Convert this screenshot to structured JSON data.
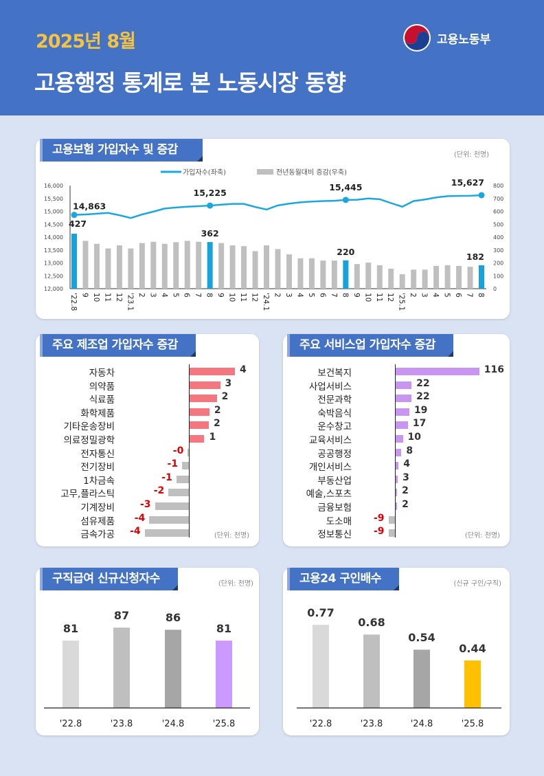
{
  "header": {
    "period": "2025년 8월",
    "title": "고용행정 통계로 본 노동시장 동향",
    "ministry": "고용노동부",
    "logo_icon": "taegeuk-emblem-icon"
  },
  "colors": {
    "header_bg": "#4472c4",
    "period_text": "#f5c342",
    "line": "#1aa7e0",
    "bar_highlight": "#17a2dc",
    "bar_gray": "#bfbfbf",
    "manufacturing_positive": "#f4777f",
    "services_positive": "#c896f0",
    "negative_label": "#e00000"
  },
  "panels": {
    "insurance": {
      "title": "고용보험 가입자수 및 증감",
      "unit": "(단위: 천명)"
    },
    "manufacturing": {
      "title": "주요 제조업 가입자수 증감",
      "unit": "(단위: 천명)"
    },
    "services": {
      "title": "주요 서비스업 가입자수 증감",
      "unit": "(단위: 천명)"
    },
    "benefits": {
      "title": "구직급여 신규신청자수",
      "unit": "(단위: 천명)"
    },
    "jobs": {
      "title": "고용24 구인배수",
      "unit": "(신규 구인/구직)"
    }
  },
  "chart_data": [
    {
      "type": "line+bar",
      "legend": [
        "가입자수(좌축)",
        "전년동월대비 증감(우축)"
      ],
      "legend_placement": "top",
      "categories": [
        "'22.8",
        "9",
        "10",
        "11",
        "12",
        "'23.1",
        "2",
        "3",
        "4",
        "5",
        "6",
        "7",
        "8",
        "9",
        "10",
        "11",
        "12",
        "'24.1",
        "2",
        "3",
        "4",
        "5",
        "6",
        "7",
        "8",
        "9",
        "10",
        "11",
        "12",
        "'25.1",
        "2",
        "3",
        "4",
        "5",
        "6",
        "7",
        "8"
      ],
      "series": [
        {
          "name": "가입자수(좌축)",
          "type": "line",
          "axis": "left",
          "values": [
            14863,
            14880,
            14910,
            14940,
            14850,
            14740,
            14880,
            14990,
            15110,
            15150,
            15180,
            15200,
            15225,
            15260,
            15290,
            15290,
            15170,
            15070,
            15230,
            15300,
            15350,
            15380,
            15400,
            15410,
            15445,
            15450,
            15500,
            15470,
            15320,
            15180,
            15400,
            15460,
            15540,
            15590,
            15600,
            15605,
            15627
          ]
        },
        {
          "name": "전년동월대비 증감(우축)",
          "type": "bar",
          "axis": "right",
          "values": [
            427,
            371,
            348,
            312,
            336,
            312,
            354,
            364,
            348,
            361,
            371,
            364,
            362,
            354,
            336,
            330,
            291,
            336,
            307,
            266,
            236,
            236,
            218,
            218,
            220,
            191,
            202,
            182,
            155,
            112,
            148,
            148,
            177,
            182,
            177,
            170,
            182
          ]
        }
      ],
      "highlight_indices": [
        0,
        12,
        24,
        36
      ],
      "line_labels": [
        "14,863",
        "15,225",
        "15,445",
        "15,627"
      ],
      "bar_labels": [
        "427",
        "362",
        "220",
        "182"
      ],
      "left_ylim": [
        12000,
        16000
      ],
      "left_ticks": [
        "12,000",
        "12,500",
        "13,000",
        "13,500",
        "14,000",
        "14,500",
        "15,000",
        "15,500",
        "16,000"
      ],
      "right_ylim": [
        0,
        800
      ],
      "right_ticks": [
        "0",
        "100",
        "200",
        "300",
        "400",
        "500",
        "600",
        "700",
        "800"
      ],
      "grid": false
    },
    {
      "type": "bar",
      "orientation": "horizontal",
      "categories": [
        "자동차",
        "의약품",
        "식료품",
        "화학제품",
        "기타운송장비",
        "의료정밀광학",
        "전자통신",
        "전기장비",
        "1차금속",
        "고무,플라스틱",
        "기계장비",
        "섬유제품",
        "금속가공"
      ],
      "values": [
        4.0,
        2.7,
        2.4,
        1.75,
        1.7,
        1.3,
        -0.1,
        -0.6,
        -1.1,
        -1.8,
        -3.0,
        -3.5,
        -3.9
      ],
      "labels": [
        "4",
        "3",
        "2",
        "2",
        "2",
        "1",
        "-0",
        "-1",
        "-1",
        "-2",
        "-3",
        "-4",
        "-4"
      ]
    },
    {
      "type": "bar",
      "orientation": "horizontal",
      "categories": [
        "보건복지",
        "사업서비스",
        "전문과학",
        "숙박음식",
        "운수창고",
        "교육서비스",
        "공공행정",
        "개인서비스",
        "부동산업",
        "예술,스포츠",
        "금융보험",
        "도소매",
        "정보통신"
      ],
      "values": [
        116,
        22,
        22,
        19,
        17,
        10,
        8,
        4,
        3,
        2,
        2,
        -9,
        -9
      ],
      "labels": [
        "116",
        "22",
        "22",
        "19",
        "17",
        "10",
        "8",
        "4",
        "3",
        "2",
        "2",
        "-9",
        "-9"
      ]
    },
    {
      "type": "bar",
      "categories": [
        "'22.8",
        "'23.8",
        "'24.8",
        "'25.8"
      ],
      "values": [
        81,
        87,
        86,
        81
      ],
      "labels": [
        "81",
        "87",
        "86",
        "81"
      ],
      "colors": [
        "#d9d9d9",
        "#bfbfbf",
        "#a6a6a6",
        "#cc99ff"
      ],
      "ylim": [
        50,
        100
      ]
    },
    {
      "type": "bar",
      "categories": [
        "'22.8",
        "'23.8",
        "'24.8",
        "'25.8"
      ],
      "values": [
        0.77,
        0.68,
        0.54,
        0.44
      ],
      "labels": [
        "0.77",
        "0.68",
        "0.54",
        "0.44"
      ],
      "colors": [
        "#d9d9d9",
        "#bfbfbf",
        "#a6a6a6",
        "#ffc000"
      ],
      "ylim": [
        0,
        1
      ]
    }
  ]
}
